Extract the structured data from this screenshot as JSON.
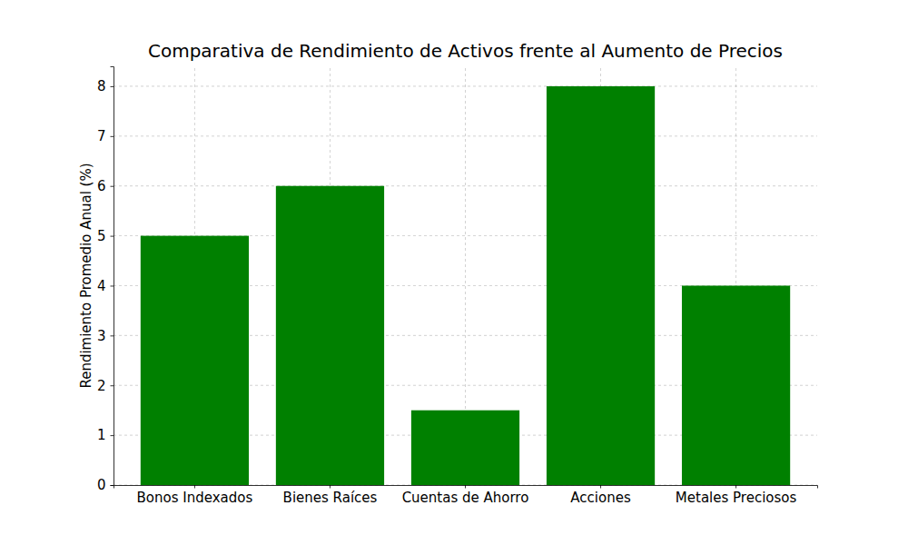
{
  "chart_data": {
    "type": "bar",
    "title": "Comparativa de Rendimiento de Activos frente al Aumento de Precios",
    "y_label": "Rendimiento Promedio Anual (%)",
    "categories": [
      "Bonos Indexados",
      "Bienes Raíces",
      "Cuentas de Ahorro",
      "Acciones",
      "Metales Preciosos"
    ],
    "values": [
      5,
      6,
      1.5,
      8,
      4
    ],
    "color": "#008000",
    "ylim": [
      0,
      8.4
    ],
    "yticks": [
      0,
      1,
      2,
      3,
      4,
      5,
      6,
      7,
      8
    ],
    "grid": true
  }
}
